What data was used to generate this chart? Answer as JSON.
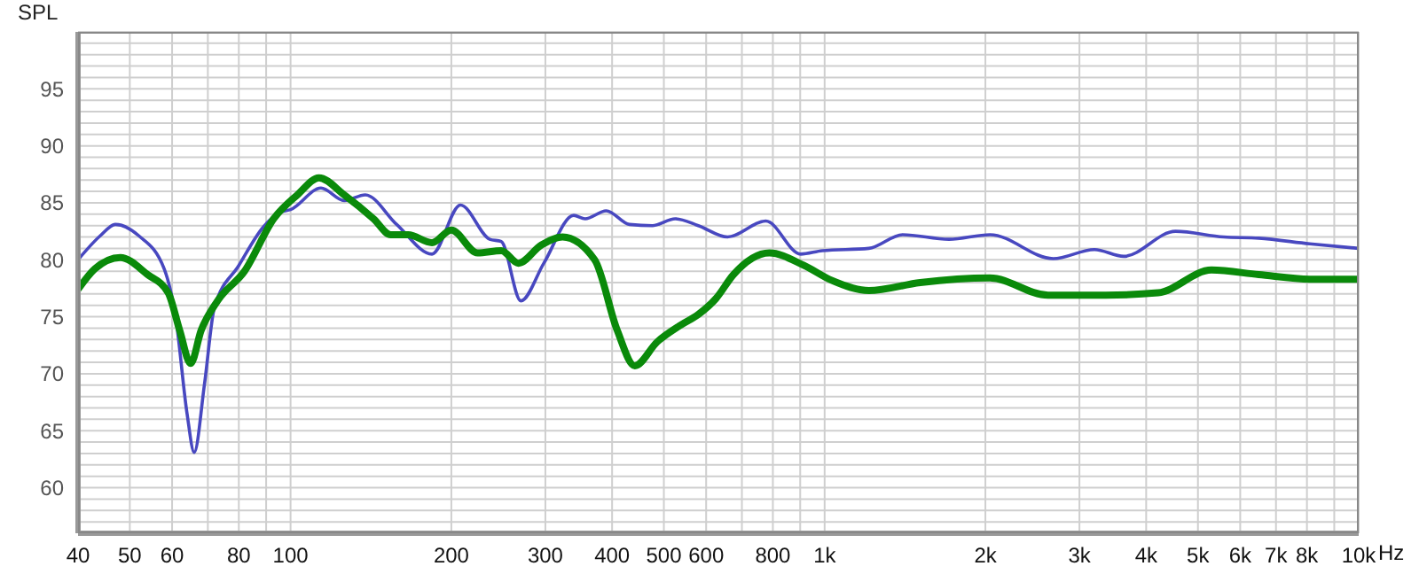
{
  "chart_data": {
    "type": "line",
    "ylabel": "SPL",
    "log": "x",
    "grid": true,
    "xlabel": "Hz",
    "marker": "none",
    "line_style": "solid",
    "xlim": [
      40,
      10000
    ],
    "ylim": [
      56,
      100
    ],
    "xticks": [
      40,
      50,
      60,
      {
        "value": 70,
        "label": null
      },
      80,
      {
        "value": 90,
        "label": null
      },
      100,
      200,
      300,
      400,
      500,
      600,
      {
        "value": 700,
        "label": null
      },
      800,
      {
        "value": 900,
        "label": null
      },
      {
        "value": 1000,
        "label": "1k"
      },
      {
        "value": 2000,
        "label": "2k"
      },
      {
        "value": 3000,
        "label": "3k"
      },
      {
        "value": 4000,
        "label": "4k"
      },
      {
        "value": 5000,
        "label": "5k"
      },
      {
        "value": 6000,
        "label": "6k"
      },
      {
        "value": 7000,
        "label": "7k"
      },
      {
        "value": 8000,
        "label": "8k"
      },
      {
        "value": 9000,
        "label": null
      },
      {
        "value": 10000,
        "label": "10k"
      }
    ],
    "yticks": [
      {
        "value": 57,
        "label": null
      },
      {
        "value": 58,
        "label": null
      },
      {
        "value": 59,
        "label": null
      },
      60,
      {
        "value": 61,
        "label": null
      },
      {
        "value": 62,
        "label": null
      },
      {
        "value": 63,
        "label": null
      },
      {
        "value": 64,
        "label": null
      },
      65,
      {
        "value": 66,
        "label": null
      },
      {
        "value": 67,
        "label": null
      },
      {
        "value": 68,
        "label": null
      },
      {
        "value": 69,
        "label": null
      },
      70,
      {
        "value": 71,
        "label": null
      },
      {
        "value": 72,
        "label": null
      },
      {
        "value": 73,
        "label": null
      },
      {
        "value": 74,
        "label": null
      },
      75,
      {
        "value": 76,
        "label": null
      },
      {
        "value": 77,
        "label": null
      },
      {
        "value": 78,
        "label": null
      },
      {
        "value": 79,
        "label": null
      },
      80,
      {
        "value": 81,
        "label": null
      },
      {
        "value": 82,
        "label": null
      },
      {
        "value": 83,
        "label": null
      },
      {
        "value": 84,
        "label": null
      },
      85,
      {
        "value": 86,
        "label": null
      },
      {
        "value": 87,
        "label": null
      },
      {
        "value": 88,
        "label": null
      },
      {
        "value": 89,
        "label": null
      },
      90,
      {
        "value": 91,
        "label": null
      },
      {
        "value": 92,
        "label": null
      },
      {
        "value": 93,
        "label": null
      },
      {
        "value": 94,
        "label": null
      },
      95,
      {
        "value": 96,
        "label": null
      },
      {
        "value": 97,
        "label": null
      },
      {
        "value": 98,
        "label": null
      },
      {
        "value": 99,
        "label": null
      }
    ],
    "series": [
      {
        "color": "#4848c0",
        "x": [
          40,
          44,
          47,
          52,
          58,
          61,
          64,
          66,
          69,
          72,
          80,
          89,
          96,
          100,
          114,
          126,
          138,
          158,
          184,
          208,
          236,
          248,
          270,
          298,
          339,
          356,
          390,
          431,
          476,
          525,
          580,
          658,
          776,
          902,
          990,
          1210,
          1400,
          1710,
          2040,
          2680,
          3200,
          3630,
          4540,
          5590,
          6500,
          8100,
          10000
        ],
        "values": [
          80,
          82.1,
          83.1,
          82.1,
          79.2,
          74.8,
          66.5,
          63.1,
          69.1,
          75.8,
          79.5,
          82.9,
          84.2,
          84.4,
          86.3,
          85.2,
          85.7,
          83.1,
          80.5,
          84.8,
          81.8,
          81.6,
          76.4,
          79.7,
          83.9,
          83.6,
          84.3,
          83.1,
          83,
          83.6,
          83,
          82,
          83.4,
          80.5,
          80.8,
          81,
          82.2,
          81.8,
          82.2,
          80.1,
          80.9,
          80.3,
          82.5,
          82,
          81.9,
          81.4,
          81
        ]
      },
      {
        "color": "#0a8a0a",
        "x": [
          40,
          43,
          48,
          54,
          59,
          62,
          65,
          68,
          73,
          82,
          93,
          103,
          113,
          126,
          143,
          154,
          166,
          184,
          200,
          224,
          248,
          267,
          295,
          323,
          371,
          409,
          441,
          486,
          539,
          580,
          626,
          675,
          788,
          915,
          1030,
          1210,
          1510,
          2040,
          2620,
          3360,
          4210,
          5300,
          6500,
          8100,
          10000
        ],
        "values": [
          77.4,
          79.2,
          80.2,
          78.7,
          77.1,
          73.8,
          70.9,
          73.8,
          76.4,
          79,
          83.6,
          85.7,
          87.2,
          85.7,
          83.6,
          82.2,
          82.2,
          81.5,
          82.6,
          80.6,
          80.8,
          79.7,
          81.3,
          82,
          80,
          73.8,
          70.7,
          72.8,
          74.3,
          75.2,
          76.6,
          78.7,
          80.6,
          79.5,
          78.2,
          77.3,
          78,
          78.4,
          76.9,
          76.9,
          77.1,
          79.1,
          78.7,
          78.3,
          78.3
        ]
      }
    ]
  }
}
